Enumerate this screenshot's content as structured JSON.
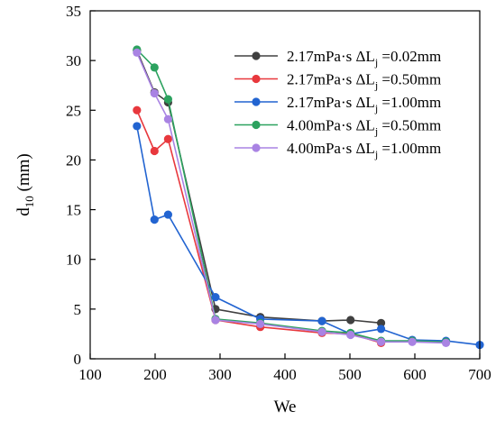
{
  "chart_data": {
    "type": "line",
    "xlabel": "We",
    "ylabel": {
      "main": "d",
      "sub": "10",
      "unit": " (mm)"
    },
    "xlim": [
      100,
      700
    ],
    "ylim": [
      0,
      35
    ],
    "xticks": [
      100,
      200,
      300,
      400,
      500,
      600,
      700
    ],
    "yticks": [
      0,
      5,
      10,
      15,
      20,
      25,
      30,
      35
    ],
    "grid": false,
    "legend_position": "top-right",
    "series": [
      {
        "name": "2.17mPa·s ΔL_j =0.02mm",
        "legend": {
          "text": "2.17mPa·s ΔL",
          "sub": "j",
          "rest": " =0.02mm"
        },
        "color": "#404040",
        "x": [
          172,
          199,
          220,
          293,
          362,
          457,
          501,
          548
        ],
        "y": [
          31.0,
          26.8,
          25.8,
          5.0,
          4.2,
          3.8,
          3.9,
          3.6
        ]
      },
      {
        "name": "2.17mPa·s ΔL_j =0.50mm",
        "legend": {
          "text": "2.17mPa·s ΔL",
          "sub": "j",
          "rest": " =0.50mm"
        },
        "color": "#e8383d",
        "x": [
          172,
          199,
          220,
          293,
          362,
          457,
          501,
          548
        ],
        "y": [
          25.0,
          20.9,
          22.1,
          3.9,
          3.2,
          2.6,
          2.5,
          1.6
        ]
      },
      {
        "name": "2.17mPa·s ΔL_j =1.00mm",
        "legend": {
          "text": "2.17mPa·s ΔL",
          "sub": "j",
          "rest": " =1.00mm"
        },
        "color": "#2264d1",
        "x": [
          172,
          199,
          220,
          293,
          362,
          457,
          501,
          548,
          596,
          648,
          700
        ],
        "y": [
          23.4,
          14.0,
          14.5,
          6.2,
          4.0,
          3.8,
          2.5,
          3.0,
          1.9,
          1.8,
          1.4
        ]
      },
      {
        "name": "4.00mPa·s ΔL_j =0.50mm",
        "legend": {
          "text": "4.00mPa·s ΔL",
          "sub": "j",
          "rest": " =0.50mm"
        },
        "color": "#2ca25f",
        "x": [
          172,
          199,
          220,
          293,
          362,
          457,
          501,
          548,
          596,
          648
        ],
        "y": [
          31.1,
          29.3,
          26.1,
          4.0,
          3.6,
          2.8,
          2.6,
          1.8,
          1.8,
          1.7
        ]
      },
      {
        "name": "4.00mPa·s ΔL_j =1.00mm",
        "legend": {
          "text": "4.00mPa·s ΔL",
          "sub": "j",
          "rest": " =1.00mm"
        },
        "color": "#a983e3",
        "x": [
          172,
          199,
          220,
          293,
          362,
          457,
          501,
          548,
          596,
          648
        ],
        "y": [
          30.8,
          26.7,
          24.1,
          3.9,
          3.5,
          2.7,
          2.4,
          1.7,
          1.7,
          1.6
        ]
      }
    ]
  }
}
